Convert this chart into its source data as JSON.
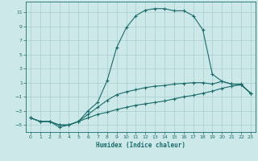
{
  "xlabel": "Humidex (Indice chaleur)",
  "bg_color": "#cce8e8",
  "grid_color": "#aacece",
  "line_color": "#1a6b6b",
  "xlim": [
    -0.5,
    23.5
  ],
  "ylim": [
    -6.0,
    12.5
  ],
  "xticks": [
    0,
    1,
    2,
    3,
    4,
    5,
    6,
    7,
    8,
    9,
    10,
    11,
    12,
    13,
    14,
    15,
    16,
    17,
    18,
    19,
    20,
    21,
    22,
    23
  ],
  "yticks": [
    -5,
    -3,
    -1,
    1,
    3,
    5,
    7,
    9,
    11
  ],
  "line1_x": [
    0,
    1,
    2,
    3,
    4,
    5,
    6,
    7,
    8,
    9,
    10,
    11,
    12,
    13,
    14,
    15,
    16,
    17,
    18,
    19,
    20,
    21,
    22,
    23
  ],
  "line1_y": [
    -4.0,
    -4.5,
    -4.5,
    -5.3,
    -5.0,
    -4.5,
    -3.0,
    -1.8,
    1.3,
    6.0,
    8.8,
    10.5,
    11.3,
    11.5,
    11.5,
    11.2,
    11.2,
    10.5,
    8.5,
    2.2,
    1.2,
    0.8,
    0.8,
    -0.5
  ],
  "line2_x": [
    0,
    1,
    2,
    3,
    4,
    5,
    6,
    7,
    8,
    9,
    10,
    11,
    12,
    13,
    14,
    15,
    16,
    17,
    18,
    19,
    20,
    21,
    22,
    23
  ],
  "line2_y": [
    -4.0,
    -4.5,
    -4.5,
    -5.0,
    -5.0,
    -4.5,
    -3.5,
    -2.5,
    -1.5,
    -0.7,
    -0.3,
    0.0,
    0.3,
    0.5,
    0.6,
    0.8,
    0.9,
    1.0,
    1.0,
    0.8,
    1.2,
    0.8,
    0.7,
    -0.5
  ],
  "line3_x": [
    0,
    1,
    2,
    3,
    4,
    5,
    6,
    7,
    8,
    9,
    10,
    11,
    12,
    13,
    14,
    15,
    16,
    17,
    18,
    19,
    20,
    21,
    22,
    23
  ],
  "line3_y": [
    -4.0,
    -4.5,
    -4.5,
    -5.0,
    -5.0,
    -4.5,
    -4.0,
    -3.5,
    -3.2,
    -2.8,
    -2.5,
    -2.2,
    -2.0,
    -1.8,
    -1.6,
    -1.3,
    -1.0,
    -0.8,
    -0.5,
    -0.2,
    0.2,
    0.5,
    0.7,
    -0.5
  ]
}
